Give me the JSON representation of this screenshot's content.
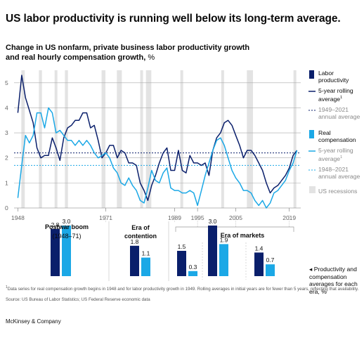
{
  "title": "US labor productivity is running well below its long-term average.",
  "subtitle_line1": "Change in US nonfarm, private business labor productivity growth",
  "subtitle_line2": "and real hourly compensation growth,",
  "subtitle_unit": "%",
  "colors": {
    "productivity": "#0a1f6b",
    "compensation": "#1ba8e6",
    "recession": "#e3e3e3",
    "axis_text": "#666666",
    "grid": "#aaaaaa"
  },
  "chart_data": [
    {
      "type": "line",
      "title": "",
      "xlim": [
        1947,
        2022
      ],
      "ylim": [
        0,
        5.5
      ],
      "y_ticks": [
        "0",
        "1",
        "2",
        "3",
        "4",
        "5"
      ],
      "x_tick_labels": [
        "1948",
        "1971",
        "1989",
        "1995",
        "2005",
        "2019"
      ],
      "grid": true,
      "legend_position": "right",
      "series": [
        {
          "name": "5-year rolling average",
          "group": "Labor productivity",
          "x": [
            1948,
            1949,
            1950,
            1951,
            1952,
            1953,
            1954,
            1955,
            1956,
            1957,
            1958,
            1959,
            1960,
            1961,
            1962,
            1963,
            1964,
            1965,
            1966,
            1967,
            1968,
            1969,
            1970,
            1971,
            1972,
            1973,
            1974,
            1975,
            1976,
            1977,
            1978,
            1979,
            1980,
            1981,
            1982,
            1983,
            1984,
            1985,
            1986,
            1987,
            1988,
            1989,
            1990,
            1991,
            1992,
            1993,
            1994,
            1995,
            1996,
            1997,
            1998,
            1999,
            2000,
            2001,
            2002,
            2003,
            2004,
            2005,
            2006,
            2007,
            2008,
            2009,
            2010,
            2011,
            2012,
            2013,
            2014,
            2015,
            2016,
            2017,
            2018,
            2019,
            2020,
            2021
          ],
          "values": [
            3.8,
            5.3,
            4.4,
            3.9,
            3.4,
            2.4,
            2.0,
            2.1,
            2.1,
            2.8,
            2.4,
            1.9,
            2.8,
            3.2,
            3.3,
            3.5,
            3.5,
            3.8,
            3.8,
            3.2,
            3.3,
            2.7,
            2.0,
            2.2,
            2.5,
            2.5,
            2.0,
            2.3,
            2.2,
            1.8,
            1.8,
            1.7,
            1.0,
            0.7,
            0.3,
            0.9,
            1.3,
            1.8,
            2.2,
            2.4,
            1.5,
            1.5,
            2.3,
            1.5,
            1.4,
            2.1,
            1.8,
            1.8,
            1.7,
            1.8,
            1.3,
            2.3,
            2.8,
            3.0,
            3.4,
            3.5,
            3.3,
            2.9,
            2.5,
            2.0,
            2.3,
            2.3,
            2.1,
            1.8,
            1.5,
            1.0,
            0.6,
            0.8,
            0.9,
            1.1,
            1.3,
            1.6,
            2.1,
            2.3
          ]
        },
        {
          "name": "5-year rolling average",
          "group": "Real compensation",
          "x": [
            1948,
            1949,
            1950,
            1951,
            1952,
            1953,
            1954,
            1955,
            1956,
            1957,
            1958,
            1959,
            1960,
            1961,
            1962,
            1963,
            1964,
            1965,
            1966,
            1967,
            1968,
            1969,
            1970,
            1971,
            1972,
            1973,
            1974,
            1975,
            1976,
            1977,
            1978,
            1979,
            1980,
            1981,
            1982,
            1983,
            1984,
            1985,
            1986,
            1987,
            1988,
            1989,
            1990,
            1991,
            1992,
            1993,
            1994,
            1995,
            1996,
            1997,
            1998,
            1999,
            2000,
            2001,
            2002,
            2003,
            2004,
            2005,
            2006,
            2007,
            2008,
            2009,
            2010,
            2011,
            2012,
            2013,
            2014,
            2015,
            2016,
            2017,
            2018,
            2019,
            2020,
            2021
          ],
          "values": [
            0.4,
            1.7,
            2.9,
            2.6,
            2.9,
            3.8,
            3.8,
            3.2,
            4.0,
            3.8,
            3.0,
            3.1,
            2.9,
            2.7,
            2.7,
            2.5,
            2.7,
            2.5,
            2.7,
            2.5,
            2.2,
            2.0,
            2.1,
            2.2,
            2.0,
            1.6,
            1.4,
            1.0,
            0.9,
            1.2,
            0.9,
            0.7,
            0.3,
            0.2,
            0.8,
            1.5,
            1.1,
            1.0,
            1.4,
            1.6,
            0.8,
            0.7,
            0.7,
            0.6,
            0.6,
            0.7,
            0.6,
            0.1,
            0.7,
            1.3,
            1.8,
            2.3,
            2.7,
            2.8,
            2.5,
            2.0,
            1.5,
            1.2,
            1.0,
            0.7,
            0.7,
            0.6,
            0.3,
            0.1,
            0.3,
            0.0,
            0.2,
            0.6,
            0.7,
            0.9,
            1.1,
            1.5,
            1.8,
            2.3
          ]
        }
      ],
      "reference_lines": [
        {
          "name": "1949–2021 annual average",
          "group": "Labor productivity",
          "value": 2.2
        },
        {
          "name": "1948–2021 annual average",
          "group": "Real compensation",
          "value": 1.7
        }
      ],
      "recessions": [
        [
          1948.9,
          1949.8
        ],
        [
          1953.5,
          1954.3
        ],
        [
          1957.6,
          1958.3
        ],
        [
          1960.3,
          1961.1
        ],
        [
          1969.9,
          1970.9
        ],
        [
          1973.9,
          1975.2
        ],
        [
          1980.0,
          1980.6
        ],
        [
          1981.5,
          1982.9
        ],
        [
          1990.5,
          1991.2
        ],
        [
          2001.2,
          2001.9
        ],
        [
          2007.9,
          2009.5
        ],
        [
          2020.1,
          2020.4
        ]
      ]
    },
    {
      "type": "bar",
      "title": "Eras",
      "series_names": [
        "Productivity",
        "Compensation"
      ],
      "groups": [
        {
          "id": "postwar",
          "label": "Postwar boom",
          "range": "(1948–71)",
          "values": [
            2.8,
            3.0
          ],
          "value_labels": [
            "2.8",
            "3.0"
          ]
        },
        {
          "id": "contention",
          "label": "Era of contention",
          "label_line1": "Era of",
          "label_line2": "contention",
          "values": [
            1.8,
            1.1
          ],
          "value_labels": [
            "1.8",
            "1.1"
          ]
        },
        {
          "id": "markets1",
          "label": "Era of markets",
          "values": [
            1.5,
            0.3
          ],
          "value_labels": [
            "1.5",
            "0.3"
          ]
        },
        {
          "id": "markets2",
          "label": "Era of markets",
          "values": [
            3.0,
            1.9
          ],
          "value_labels": [
            "3.0",
            "1.9"
          ]
        },
        {
          "id": "markets3",
          "label": "Era of markets",
          "values": [
            1.4,
            0.7
          ],
          "value_labels": [
            "1.4",
            "0.7"
          ]
        }
      ],
      "era_markets_label": "Era of markets"
    }
  ],
  "legend": {
    "labor_heading_line1": "Labor",
    "labor_heading_line2": "productivity",
    "labor_avg_line1": "5-year rolling",
    "labor_avg_line2": "average",
    "labor_avg_sup": "1",
    "labor_ref_line1": "1949–2021",
    "labor_ref_line2": "annual average",
    "comp_heading_line1": "Real",
    "comp_heading_line2": "compensation",
    "comp_avg_line1": "5-year rolling",
    "comp_avg_line2": "average",
    "comp_avg_sup": "1",
    "comp_ref_line1": "1948–2021",
    "comp_ref_line2": "annual average",
    "recessions": "US recessions"
  },
  "side_note": "◂ Productivity and compensation averages for each era, %",
  "footnote_sup": "1",
  "footnote": "Data series for real compensation growth begins in 1948 and for labor productivity growth in 1949. Rolling averages in initial years are for fewer than 5 years, reflecting that availability.",
  "source": "Source: US Bureau of Labor Statistics; US Federal Reserve economic data",
  "brand": "McKinsey & Company"
}
